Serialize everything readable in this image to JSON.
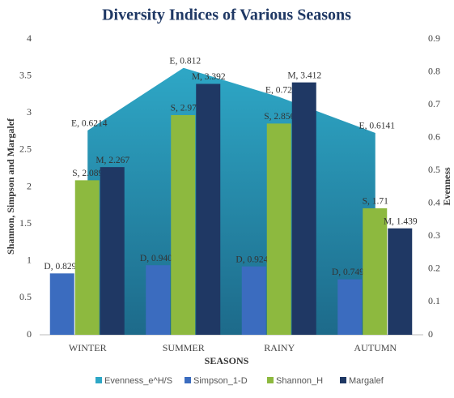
{
  "chart_data": {
    "type": "bar",
    "title": "Diversity Indices of Various Seasons",
    "x_label": "SEASONS",
    "y_label": "Shannon, Simpson and Margalef",
    "y2_label": "Evenness",
    "categories": [
      "WINTER",
      "SUMMER",
      "RAINY",
      "AUTUMN"
    ],
    "ylim": [
      0,
      4
    ],
    "yticks": [
      0,
      0.5,
      1,
      1.5,
      2,
      2.5,
      3,
      3.5,
      4
    ],
    "y2lim": [
      0,
      0.9
    ],
    "y2ticks": [
      0,
      0.1,
      0.2,
      0.3,
      0.4,
      0.5,
      0.6,
      0.7,
      0.8,
      0.9
    ],
    "series": [
      {
        "name": "Evenness_e^H/S",
        "type": "area",
        "axis": "y2",
        "color": "#2ea7c6",
        "values": [
          0.6214,
          0.812,
          0.723,
          0.6141
        ],
        "value_labels": [
          "E, 0.6214",
          "E, 0.812",
          "E, 0.723",
          "E, 0.6141"
        ]
      },
      {
        "name": "Simpson_1-D",
        "color": "#3b6cbf",
        "values": [
          0.8295,
          0.9405,
          0.9246,
          0.7495
        ],
        "value_labels": [
          "D, 0.8295",
          "D, 0.9405",
          "D, 0.9246",
          "D, 0.7495"
        ]
      },
      {
        "name": "Shannon_H",
        "color": "#8db93f",
        "values": [
          2.089,
          2.97,
          2.856,
          1.71
        ],
        "value_labels": [
          "S, 2.089",
          "S, 2.97",
          "S, 2.856",
          "S, 1.71"
        ]
      },
      {
        "name": "Margalef",
        "color": "#1f3864",
        "values": [
          2.267,
          3.392,
          3.412,
          1.439
        ],
        "value_labels": [
          "M, 2.267",
          "M, 3.392",
          "M, 3.412",
          "M, 1.439"
        ]
      }
    ]
  }
}
